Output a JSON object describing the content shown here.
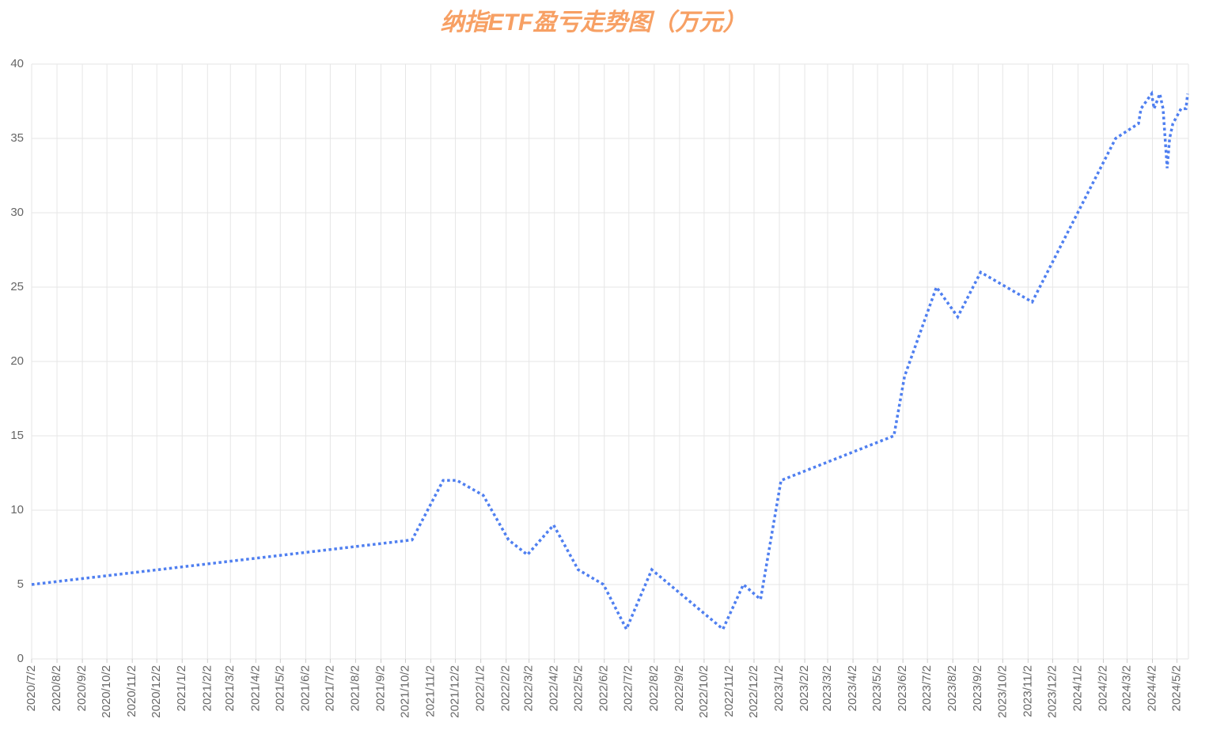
{
  "chart_data": {
    "type": "line",
    "title": "纳指ETF盈亏走势图（万元）",
    "x": [
      "2020/7/2",
      "2021/10/10",
      "2021/11/17",
      "2021/12/4",
      "2022/1/5",
      "2022/2/5",
      "2022/2/28",
      "2022/4/1",
      "2022/5/1",
      "2022/6/1",
      "2022/6/29",
      "2022/7/30",
      "2022/10/25",
      "2022/11/19",
      "2022/12/10",
      "2023/1/4",
      "2023/5/22",
      "2023/6/4",
      "2023/7/13",
      "2023/8/8",
      "2023/9/5",
      "2023/11/7",
      "2024/2/17",
      "2024/3/16",
      "2024/3/19",
      "2024/4/1",
      "2024/4/4",
      "2024/4/11",
      "2024/4/15",
      "2024/4/20",
      "2024/4/23",
      "2024/4/27",
      "2024/5/7",
      "2024/5/13",
      "2024/5/15"
    ],
    "series": [
      {
        "color": "#4f7ff0",
        "values": [
          5,
          8,
          12,
          12,
          11,
          8,
          7,
          9,
          6,
          5,
          2,
          6,
          2,
          5,
          4,
          12,
          15,
          19,
          25,
          23,
          26,
          24,
          35,
          36,
          37,
          38,
          37,
          38,
          37,
          33,
          35,
          36,
          37,
          37,
          38
        ]
      }
    ],
    "xlim": [
      "2020/7/2",
      "2024/5/16"
    ],
    "xticks": [
      "2020/7/2",
      "2020/8/2",
      "2020/9/2",
      "2020/10/2",
      "2020/11/2",
      "2020/12/2",
      "2021/1/2",
      "2021/2/2",
      "2021/3/2",
      "2021/4/2",
      "2021/5/2",
      "2021/6/2",
      "2021/7/2",
      "2021/8/2",
      "2021/9/2",
      "2021/10/2",
      "2021/11/2",
      "2021/12/2",
      "2022/1/2",
      "2022/2/2",
      "2022/3/2",
      "2022/4/2",
      "2022/5/2",
      "2022/6/2",
      "2022/7/2",
      "2022/8/2",
      "2022/9/2",
      "2022/10/2",
      "2022/11/2",
      "2022/12/2",
      "2023/1/2",
      "2023/2/2",
      "2023/3/2",
      "2023/4/2",
      "2023/5/2",
      "2023/6/2",
      "2023/7/2",
      "2023/8/2",
      "2023/9/2",
      "2023/10/2",
      "2023/11/2",
      "2023/12/2",
      "2024/1/2",
      "2024/2/2",
      "2024/3/2",
      "2024/4/2",
      "2024/5/2"
    ],
    "ylim": [
      0,
      40
    ],
    "yticks": [
      0,
      5,
      10,
      15,
      20,
      25,
      30,
      35,
      40
    ],
    "grid": true
  }
}
